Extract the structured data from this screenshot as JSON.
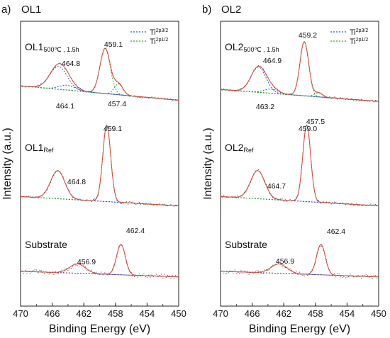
{
  "x_axis": {
    "label": "Binding Energy (eV)",
    "ticks": [
      470,
      466,
      462,
      458,
      454,
      450
    ],
    "range": [
      470,
      450
    ]
  },
  "y_axis": {
    "label": "Intensity (a.u.)"
  },
  "legend": [
    {
      "text": "Ti",
      "sup": "2p3/2",
      "color": "#2d55c8"
    },
    {
      "text": "Ti",
      "sup": "2p1/2",
      "color": "#2ca02c"
    }
  ],
  "colors": {
    "measured": "#555555",
    "envelope": "#d5473a",
    "ti_2p32": "#2d55c8",
    "ti_2p12": "#2ca02c",
    "substrate_fit": "#8a3a6a"
  },
  "panels": [
    {
      "letter": "a)",
      "title": "OL1",
      "traces": [
        {
          "name": "OL1",
          "sub": "500℃ , 1.5h",
          "peaks": [
            {
              "label": "464.8"
            },
            {
              "label": "464.1"
            },
            {
              "label": "459.1"
            },
            {
              "label": "457.4"
            }
          ]
        },
        {
          "name": "OL1",
          "sub": "Ref",
          "peaks": [
            {
              "label": "464.8"
            },
            {
              "label": "459.1"
            }
          ]
        },
        {
          "name": "Substrate",
          "sub": "",
          "peaks": [
            {
              "label": "456.9"
            },
            {
              "label": "462.4"
            }
          ]
        }
      ]
    },
    {
      "letter": "b)",
      "title": "OL2",
      "traces": [
        {
          "name": "OL2",
          "sub": "500℃ , 1.5h",
          "peaks": [
            {
              "label": "464.9"
            },
            {
              "label": "463.2"
            },
            {
              "label": "459.2"
            },
            {
              "label": "457.5"
            }
          ]
        },
        {
          "name": "OL2",
          "sub": "Ref",
          "peaks": [
            {
              "label": "464.7"
            },
            {
              "label": "459.0"
            }
          ]
        },
        {
          "name": "Substrate",
          "sub": "",
          "peaks": [
            {
              "label": "456.9"
            },
            {
              "label": "462.4"
            }
          ]
        }
      ]
    }
  ],
  "chart_data": [
    {
      "type": "line",
      "title": "OL1",
      "xlabel": "Binding Energy (eV)",
      "ylabel": "Intensity (a.u.)",
      "xlim": [
        470,
        450
      ],
      "x_ticks": [
        470,
        466,
        462,
        458,
        454,
        450
      ],
      "y_ticks_shown": false,
      "legend_position": "top-right",
      "series": [
        {
          "name": "OL1 500℃ , 1.5h",
          "baseline": 0.1,
          "background_slope": 0.012,
          "peaks": [
            {
              "center": 465.2,
              "height": 0.38,
              "width": 1.1,
              "component": "Ti 2p1/2"
            },
            {
              "center": 464.1,
              "height": 0.08,
              "width": 1.0,
              "component": "Ti 2p1/2"
            },
            {
              "center": 459.3,
              "height": 0.75,
              "width": 0.65,
              "component": "Ti 2p3/2"
            },
            {
              "center": 457.6,
              "height": 0.18,
              "width": 0.55,
              "component": "Ti 2p3/2"
            }
          ],
          "peak_labels": [
            "464.8",
            "464.1",
            "459.1",
            "457.4"
          ]
        },
        {
          "name": "OL1 Ref",
          "baseline": 0.05,
          "background_slope": 0.006,
          "peaks": [
            {
              "center": 465.3,
              "height": 0.36,
              "width": 0.9,
              "component": "Ti 2p1/2"
            },
            {
              "center": 459.1,
              "height": 0.98,
              "width": 0.5,
              "component": "Ti 2p3/2"
            }
          ],
          "peak_labels": [
            "464.8",
            "459.1"
          ]
        },
        {
          "name": "Substrate",
          "baseline": 0.05,
          "background_slope": 0.006,
          "peaks": [
            {
              "center": 462.8,
              "height": 0.2,
              "width": 1.0
            },
            {
              "center": 457.3,
              "height": 0.65,
              "width": 0.55
            }
          ],
          "peak_labels": [
            "456.9",
            "462.4"
          ]
        }
      ]
    },
    {
      "type": "line",
      "title": "OL2",
      "xlabel": "Binding Energy (eV)",
      "ylabel": "Intensity (a.u.)",
      "xlim": [
        470,
        450
      ],
      "x_ticks": [
        470,
        466,
        462,
        458,
        454,
        450
      ],
      "y_ticks_shown": false,
      "legend_position": "top-right",
      "series": [
        {
          "name": "OL2 500℃ , 1.5h",
          "baseline": 0.08,
          "background_slope": 0.01,
          "peaks": [
            {
              "center": 465.2,
              "height": 0.42,
              "width": 0.95,
              "component": "Ti 2p1/2"
            },
            {
              "center": 463.6,
              "height": 0.07,
              "width": 0.9,
              "component": "Ti 2p1/2"
            },
            {
              "center": 459.4,
              "height": 0.9,
              "width": 0.55,
              "component": "Ti 2p3/2"
            },
            {
              "center": 457.6,
              "height": 0.07,
              "width": 0.5,
              "component": "Ti 2p3/2"
            }
          ],
          "peak_labels": [
            "464.9",
            "463.2",
            "459.2",
            "457.5"
          ]
        },
        {
          "name": "OL2 Ref",
          "baseline": 0.05,
          "background_slope": 0.006,
          "peaks": [
            {
              "center": 465.3,
              "height": 0.36,
              "width": 0.9,
              "component": "Ti 2p1/2"
            },
            {
              "center": 459.1,
              "height": 0.98,
              "width": 0.5,
              "component": "Ti 2p3/2"
            }
          ],
          "peak_labels": [
            "464.7",
            "459.0"
          ]
        },
        {
          "name": "Substrate",
          "baseline": 0.05,
          "background_slope": 0.006,
          "peaks": [
            {
              "center": 462.6,
              "height": 0.2,
              "width": 1.0
            },
            {
              "center": 457.3,
              "height": 0.65,
              "width": 0.55
            }
          ],
          "peak_labels": [
            "456.9",
            "462.4"
          ]
        }
      ]
    }
  ]
}
